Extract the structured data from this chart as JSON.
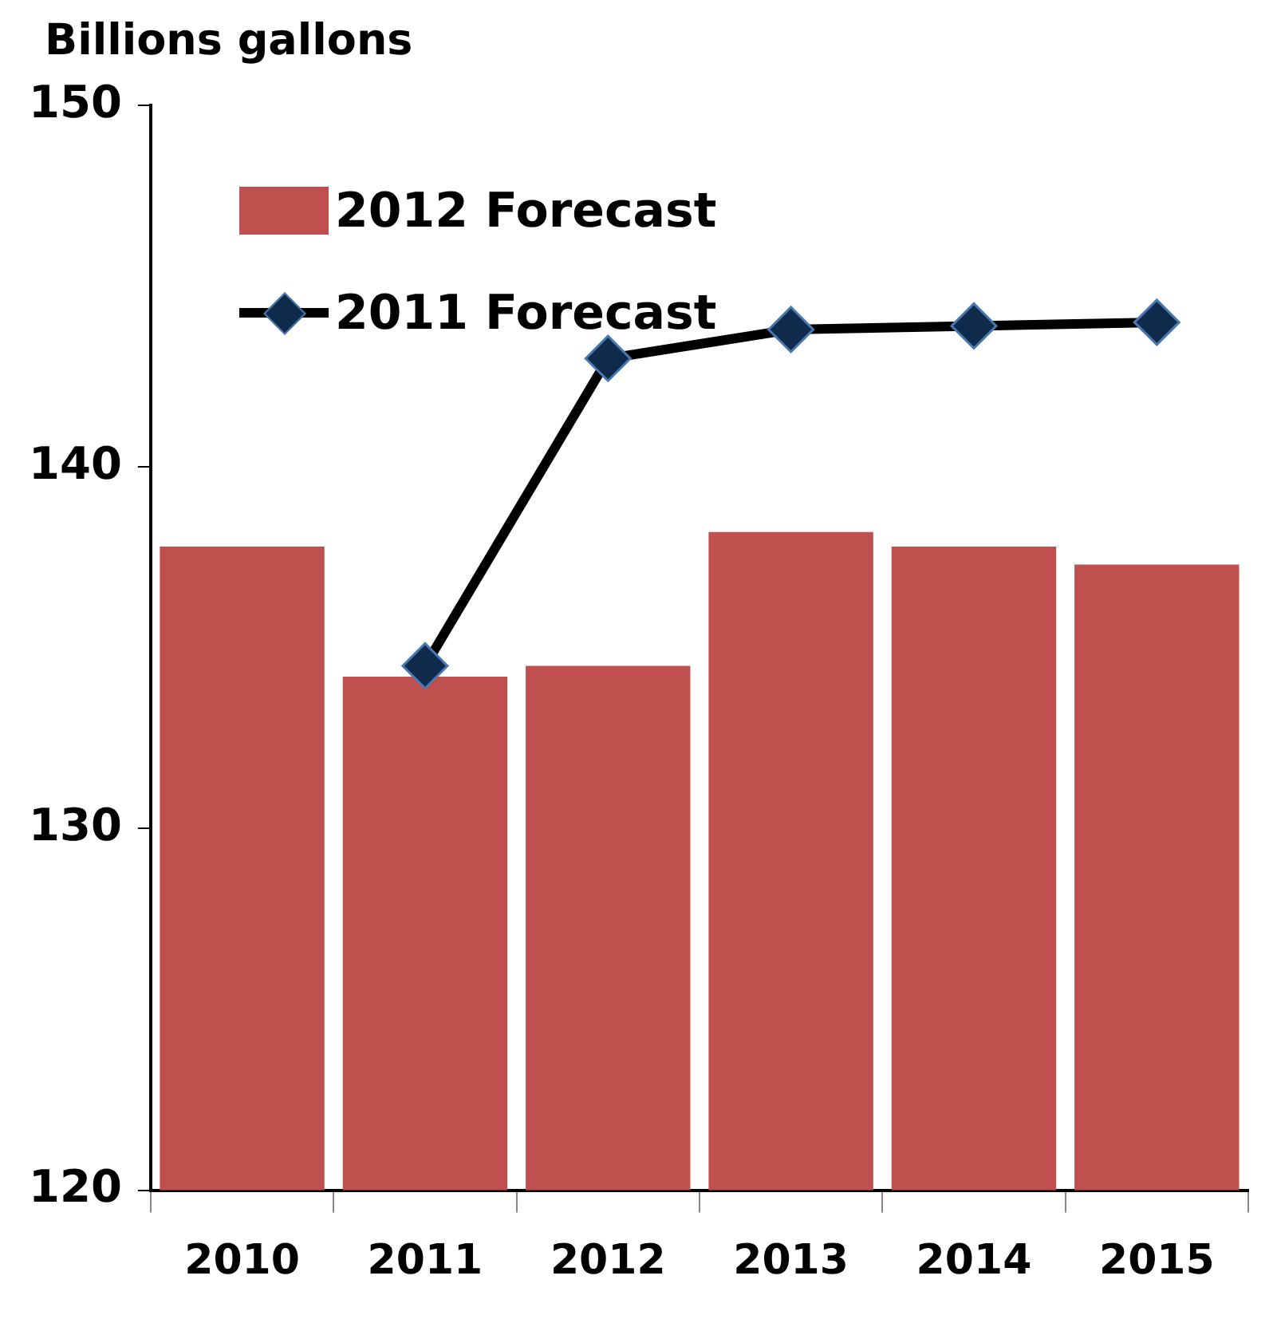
{
  "chart_data": {
    "type": "bar",
    "ylabel": "Billions gallons",
    "categories": [
      "2010",
      "2011",
      "2012",
      "2013",
      "2014",
      "2015"
    ],
    "series": [
      {
        "name": "2012 Forecast",
        "color": "#c0504d",
        "values": [
          137.8,
          134.2,
          134.5,
          138.2,
          137.8,
          137.3
        ]
      },
      {
        "name": "2011 Forecast",
        "type": "line",
        "color": "#000000",
        "values": [
          null,
          134.5,
          143.0,
          143.8,
          143.9,
          144.0
        ]
      }
    ],
    "ylim": [
      120,
      150
    ],
    "yticks": [
      120,
      130,
      140,
      150
    ],
    "grid": false,
    "legend": "top left",
    "marker": "diamond",
    "line_style": "solid"
  }
}
